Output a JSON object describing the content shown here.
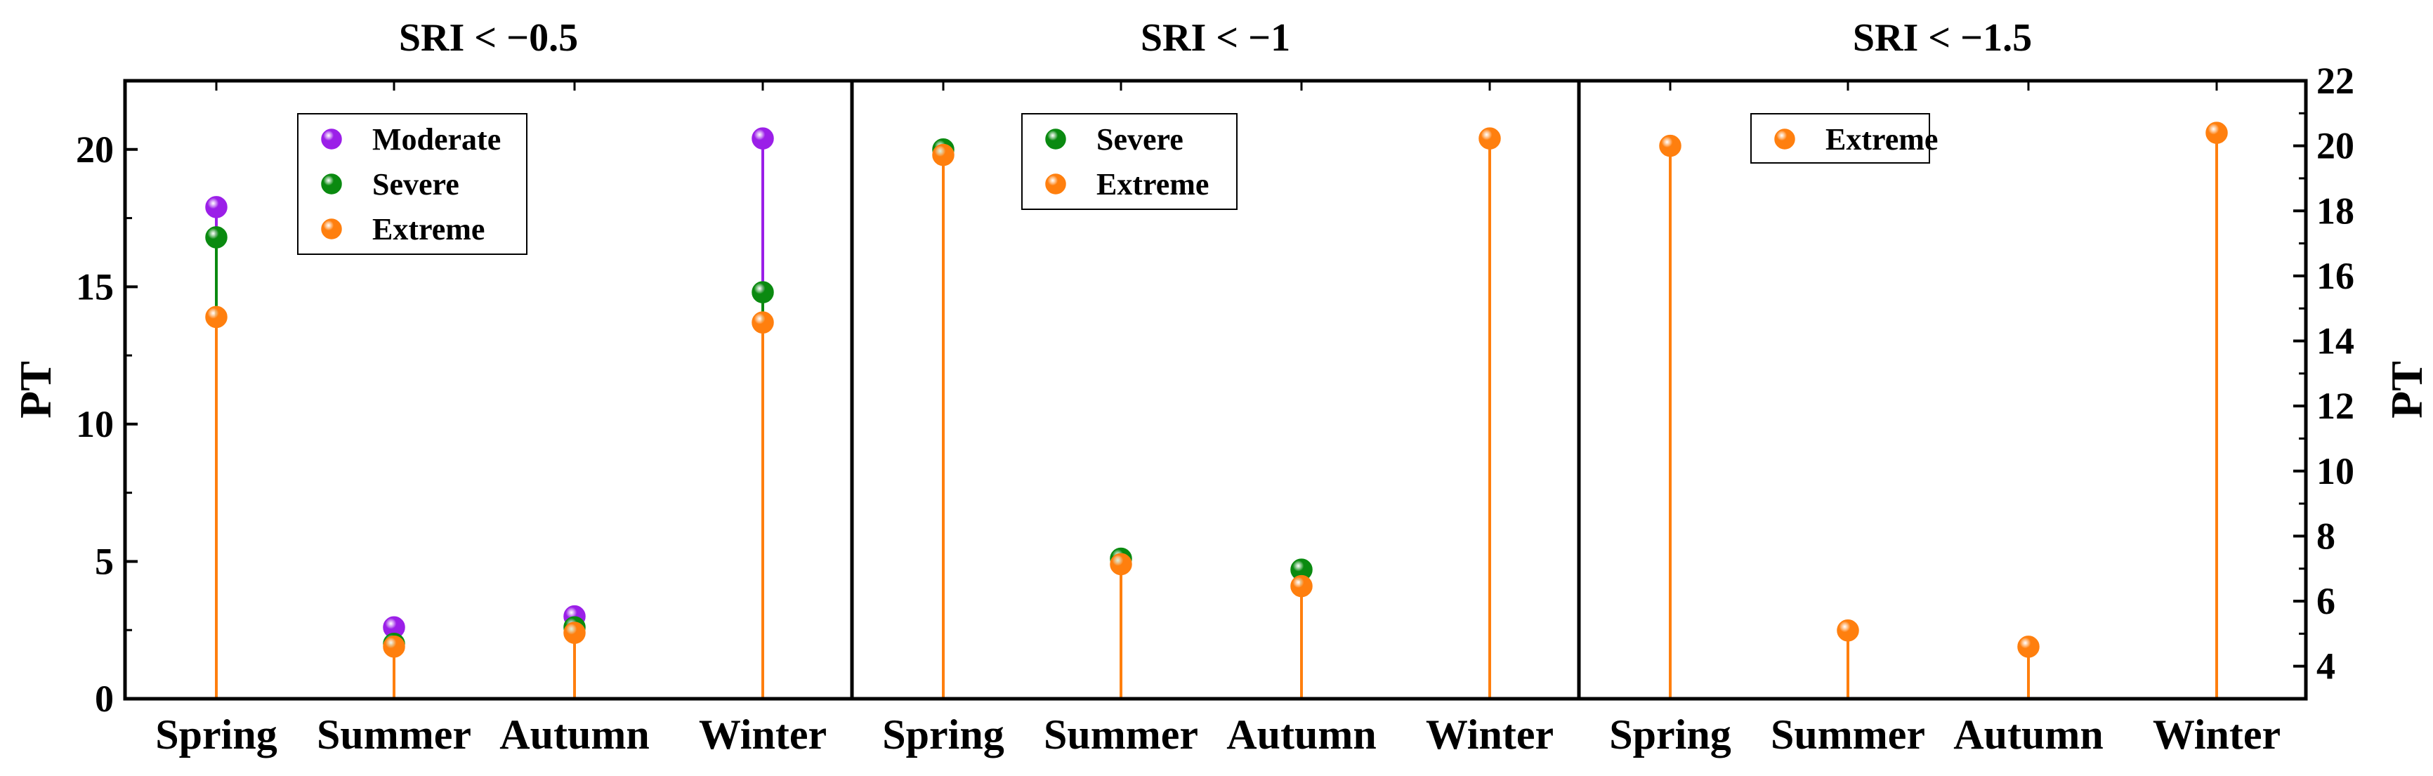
{
  "chart_data": {
    "type": "lollipop",
    "categories": [
      "Spring",
      "Summer",
      "Autumn",
      "Winter"
    ],
    "left_axis": {
      "label": "PT",
      "range": [
        0,
        22.5
      ],
      "ticks": [
        0,
        5,
        10,
        15,
        20
      ]
    },
    "right_axis": {
      "label": "PT",
      "range": [
        3,
        22
      ],
      "ticks": [
        4,
        6,
        8,
        10,
        12,
        14,
        16,
        18,
        20,
        22
      ]
    },
    "colors": {
      "Moderate": "#9b1fe8",
      "Severe": "#0a8a10",
      "Extreme": "#ff7f0e"
    },
    "panels": [
      {
        "title": "SRI < −0.5",
        "axis": "left",
        "series": [
          {
            "name": "Moderate",
            "values": [
              17.9,
              2.6,
              3.0,
              20.4
            ]
          },
          {
            "name": "Severe",
            "values": [
              16.8,
              2.0,
              2.6,
              14.8
            ]
          },
          {
            "name": "Extreme",
            "values": [
              13.9,
              1.9,
              2.4,
              13.7
            ]
          }
        ]
      },
      {
        "title": "SRI < −1",
        "axis": "left",
        "series": [
          {
            "name": "Severe",
            "values": [
              20.0,
              5.1,
              4.7,
              null
            ]
          },
          {
            "name": "Extreme",
            "values": [
              19.8,
              4.9,
              4.1,
              20.4
            ]
          }
        ]
      },
      {
        "title": "SRI < −1.5",
        "axis": "right",
        "series": [
          {
            "name": "Extreme",
            "values": [
              20.0,
              5.1,
              4.6,
              20.4
            ]
          }
        ]
      }
    ]
  }
}
